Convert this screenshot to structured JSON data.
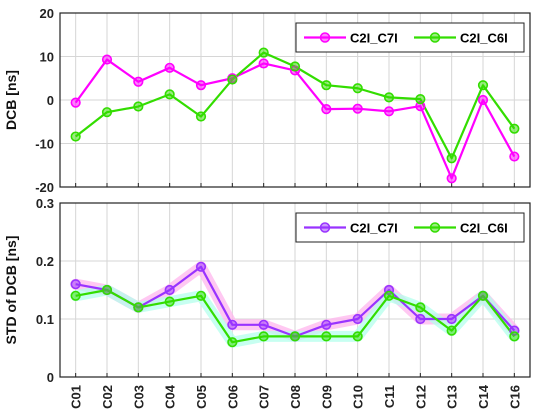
{
  "colors": {
    "c7_top": "#ff00ff",
    "c6": "#33dd00",
    "c7_bottom": "#9933ff",
    "c7_glow": "#ffb6ee",
    "c6_glow": "#b4ffec"
  },
  "chart_data": [
    {
      "type": "line",
      "ylabel": "DCB [ns]",
      "ylim": [
        -20,
        20
      ],
      "yticks": [
        "-20",
        "-10",
        "0",
        "10",
        "20"
      ],
      "grid": true,
      "legend_position": "top-right",
      "categories": [
        "C01",
        "C02",
        "C03",
        "C04",
        "C05",
        "C06",
        "C07",
        "C08",
        "C09",
        "C10",
        "C11",
        "C12",
        "C13",
        "C14",
        "C16"
      ],
      "series": [
        {
          "name": "C2I_C7I",
          "values": [
            -0.6,
            9.3,
            4.2,
            7.4,
            3.4,
            5.0,
            8.4,
            6.8,
            -2.1,
            -2.0,
            -2.6,
            -1.4,
            -18.0,
            0.0,
            -13.0
          ]
        },
        {
          "name": "C2I_C6I",
          "values": [
            -8.4,
            -2.8,
            -1.5,
            1.3,
            -3.8,
            4.7,
            10.9,
            7.7,
            3.4,
            2.7,
            0.6,
            0.2,
            -13.4,
            3.4,
            -6.6
          ]
        }
      ]
    },
    {
      "type": "line",
      "ylabel": "STD of DCB [ns]",
      "ylim": [
        0,
        0.3
      ],
      "yticks": [
        "0",
        "0.1",
        "0.2",
        "0.3"
      ],
      "grid": true,
      "legend_position": "top-right",
      "categories": [
        "C01",
        "C02",
        "C03",
        "C04",
        "C05",
        "C06",
        "C07",
        "C08",
        "C09",
        "C10",
        "C11",
        "C12",
        "C13",
        "C14",
        "C16"
      ],
      "series": [
        {
          "name": "C2I_C7I",
          "values": [
            0.16,
            0.15,
            0.12,
            0.15,
            0.19,
            0.09,
            0.09,
            0.07,
            0.09,
            0.1,
            0.15,
            0.1,
            0.1,
            0.14,
            0.08
          ]
        },
        {
          "name": "C2I_C6I",
          "values": [
            0.14,
            0.15,
            0.12,
            0.13,
            0.14,
            0.06,
            0.07,
            0.07,
            0.07,
            0.07,
            0.14,
            0.12,
            0.08,
            0.14,
            0.07
          ]
        }
      ]
    }
  ]
}
